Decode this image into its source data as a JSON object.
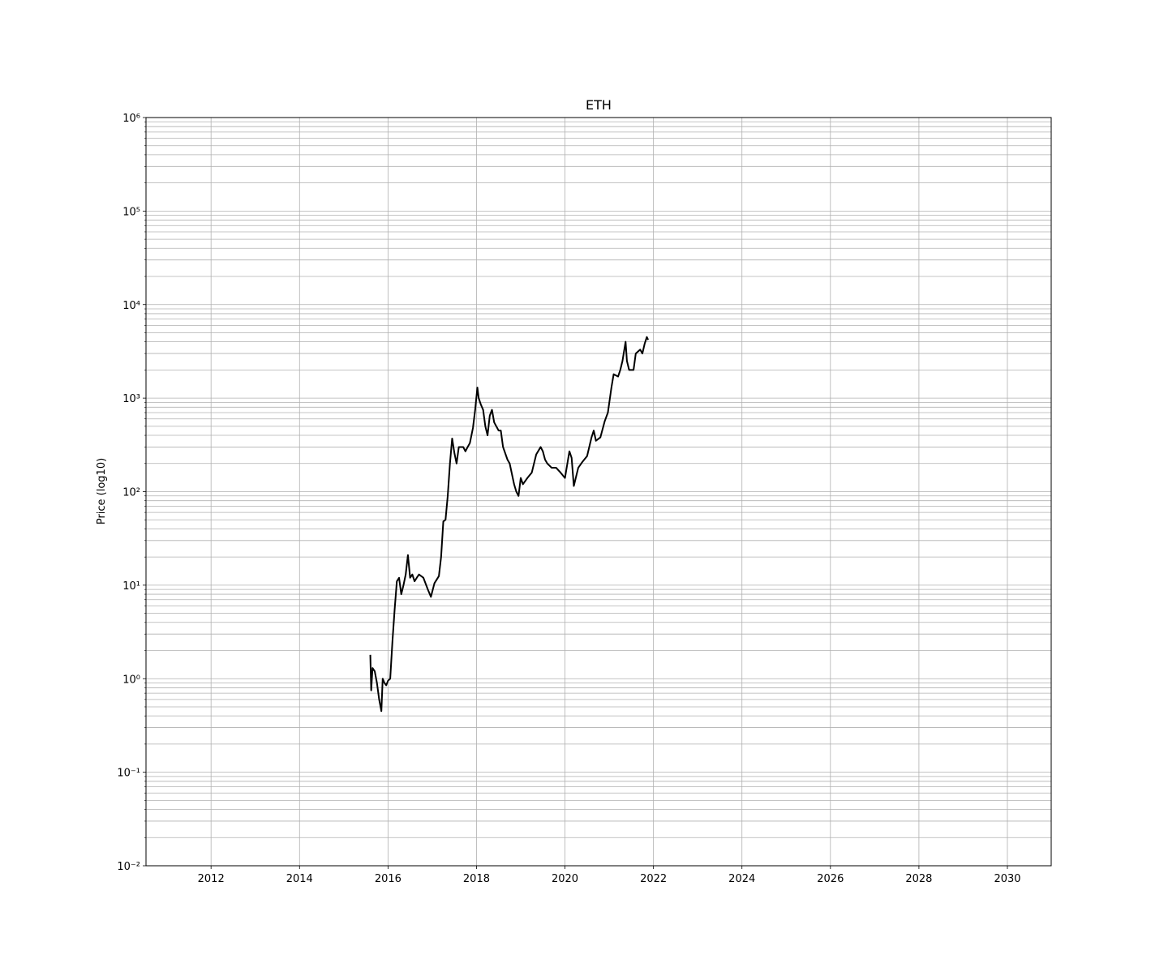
{
  "chart_data": {
    "type": "line",
    "title": "ETH",
    "y_label": "Price (log10)",
    "y_scale": "log",
    "grid": true,
    "xlim": [
      2010.53,
      2030.99
    ],
    "xticks": [
      2012,
      2014,
      2016,
      2018,
      2020,
      2022,
      2024,
      2026,
      2028,
      2030
    ],
    "ylim": [
      0.01,
      1000000
    ],
    "yticks": [
      {
        "value": 0.01,
        "label": "10⁻²"
      },
      {
        "value": 0.1,
        "label": "10⁻¹"
      },
      {
        "value": 1,
        "label": "10⁰"
      },
      {
        "value": 10,
        "label": "10¹"
      },
      {
        "value": 100,
        "label": "10²"
      },
      {
        "value": 1000,
        "label": "10³"
      },
      {
        "value": 10000,
        "label": "10⁴"
      },
      {
        "value": 100000,
        "label": "10⁵"
      },
      {
        "value": 1000000,
        "label": "10⁶"
      }
    ],
    "yminorticks": [
      0.02,
      0.03,
      0.04,
      0.05,
      0.06,
      0.07,
      0.08,
      0.09,
      0.2,
      0.3,
      0.4,
      0.5,
      0.6,
      0.7,
      0.8,
      0.9,
      2,
      3,
      4,
      5,
      6,
      7,
      8,
      9,
      20,
      30,
      40,
      50,
      60,
      70,
      80,
      90,
      200,
      300,
      400,
      500,
      600,
      700,
      800,
      900,
      2000,
      3000,
      4000,
      5000,
      6000,
      7000,
      8000,
      9000,
      20000,
      30000,
      40000,
      50000,
      60000,
      70000,
      80000,
      90000,
      200000,
      300000,
      400000,
      500000,
      600000,
      700000,
      800000,
      900000
    ],
    "series": [
      {
        "name": "ETH",
        "color": "#000000",
        "x": [
          2015.6,
          2015.62,
          2015.65,
          2015.7,
          2015.75,
          2015.8,
          2015.85,
          2015.88,
          2015.92,
          2015.96,
          2016.0,
          2016.05,
          2016.1,
          2016.15,
          2016.2,
          2016.25,
          2016.3,
          2016.35,
          2016.4,
          2016.45,
          2016.5,
          2016.55,
          2016.6,
          2016.65,
          2016.7,
          2016.8,
          2016.9,
          2016.97,
          2017.05,
          2017.15,
          2017.2,
          2017.25,
          2017.3,
          2017.35,
          2017.4,
          2017.45,
          2017.5,
          2017.55,
          2017.6,
          2017.7,
          2017.75,
          2017.8,
          2017.85,
          2017.92,
          2017.97,
          2018.02,
          2018.05,
          2018.1,
          2018.15,
          2018.2,
          2018.25,
          2018.3,
          2018.35,
          2018.4,
          2018.5,
          2018.55,
          2018.6,
          2018.7,
          2018.75,
          2018.85,
          2018.9,
          2018.95,
          2019.0,
          2019.05,
          2019.15,
          2019.25,
          2019.35,
          2019.45,
          2019.5,
          2019.55,
          2019.6,
          2019.7,
          2019.8,
          2019.9,
          2020.0,
          2020.1,
          2020.15,
          2020.2,
          2020.3,
          2020.4,
          2020.5,
          2020.6,
          2020.65,
          2020.7,
          2020.8,
          2020.9,
          2020.97,
          2021.05,
          2021.1,
          2021.2,
          2021.25,
          2021.3,
          2021.37,
          2021.4,
          2021.45,
          2021.55,
          2021.6,
          2021.7,
          2021.75,
          2021.8,
          2021.85,
          2021.88
        ],
        "values": [
          1.8,
          0.75,
          1.3,
          1.2,
          0.9,
          0.6,
          0.45,
          1.0,
          0.9,
          0.85,
          0.95,
          1.0,
          2.5,
          5.5,
          11,
          12,
          8,
          10,
          13,
          21,
          12,
          13,
          11,
          12,
          13,
          12,
          9,
          7.5,
          10.5,
          12.5,
          20,
          48,
          50,
          90,
          200,
          370,
          260,
          200,
          300,
          300,
          270,
          300,
          330,
          480,
          750,
          1300,
          1000,
          850,
          750,
          500,
          400,
          650,
          750,
          550,
          450,
          450,
          300,
          220,
          200,
          120,
          100,
          90,
          140,
          120,
          140,
          160,
          250,
          300,
          270,
          220,
          200,
          180,
          180,
          160,
          140,
          270,
          230,
          115,
          180,
          210,
          240,
          380,
          450,
          350,
          380,
          570,
          700,
          1300,
          1800,
          1700,
          2000,
          2500,
          4000,
          2500,
          2000,
          2000,
          3000,
          3300,
          3000,
          3800,
          4500,
          4200
        ]
      }
    ]
  }
}
